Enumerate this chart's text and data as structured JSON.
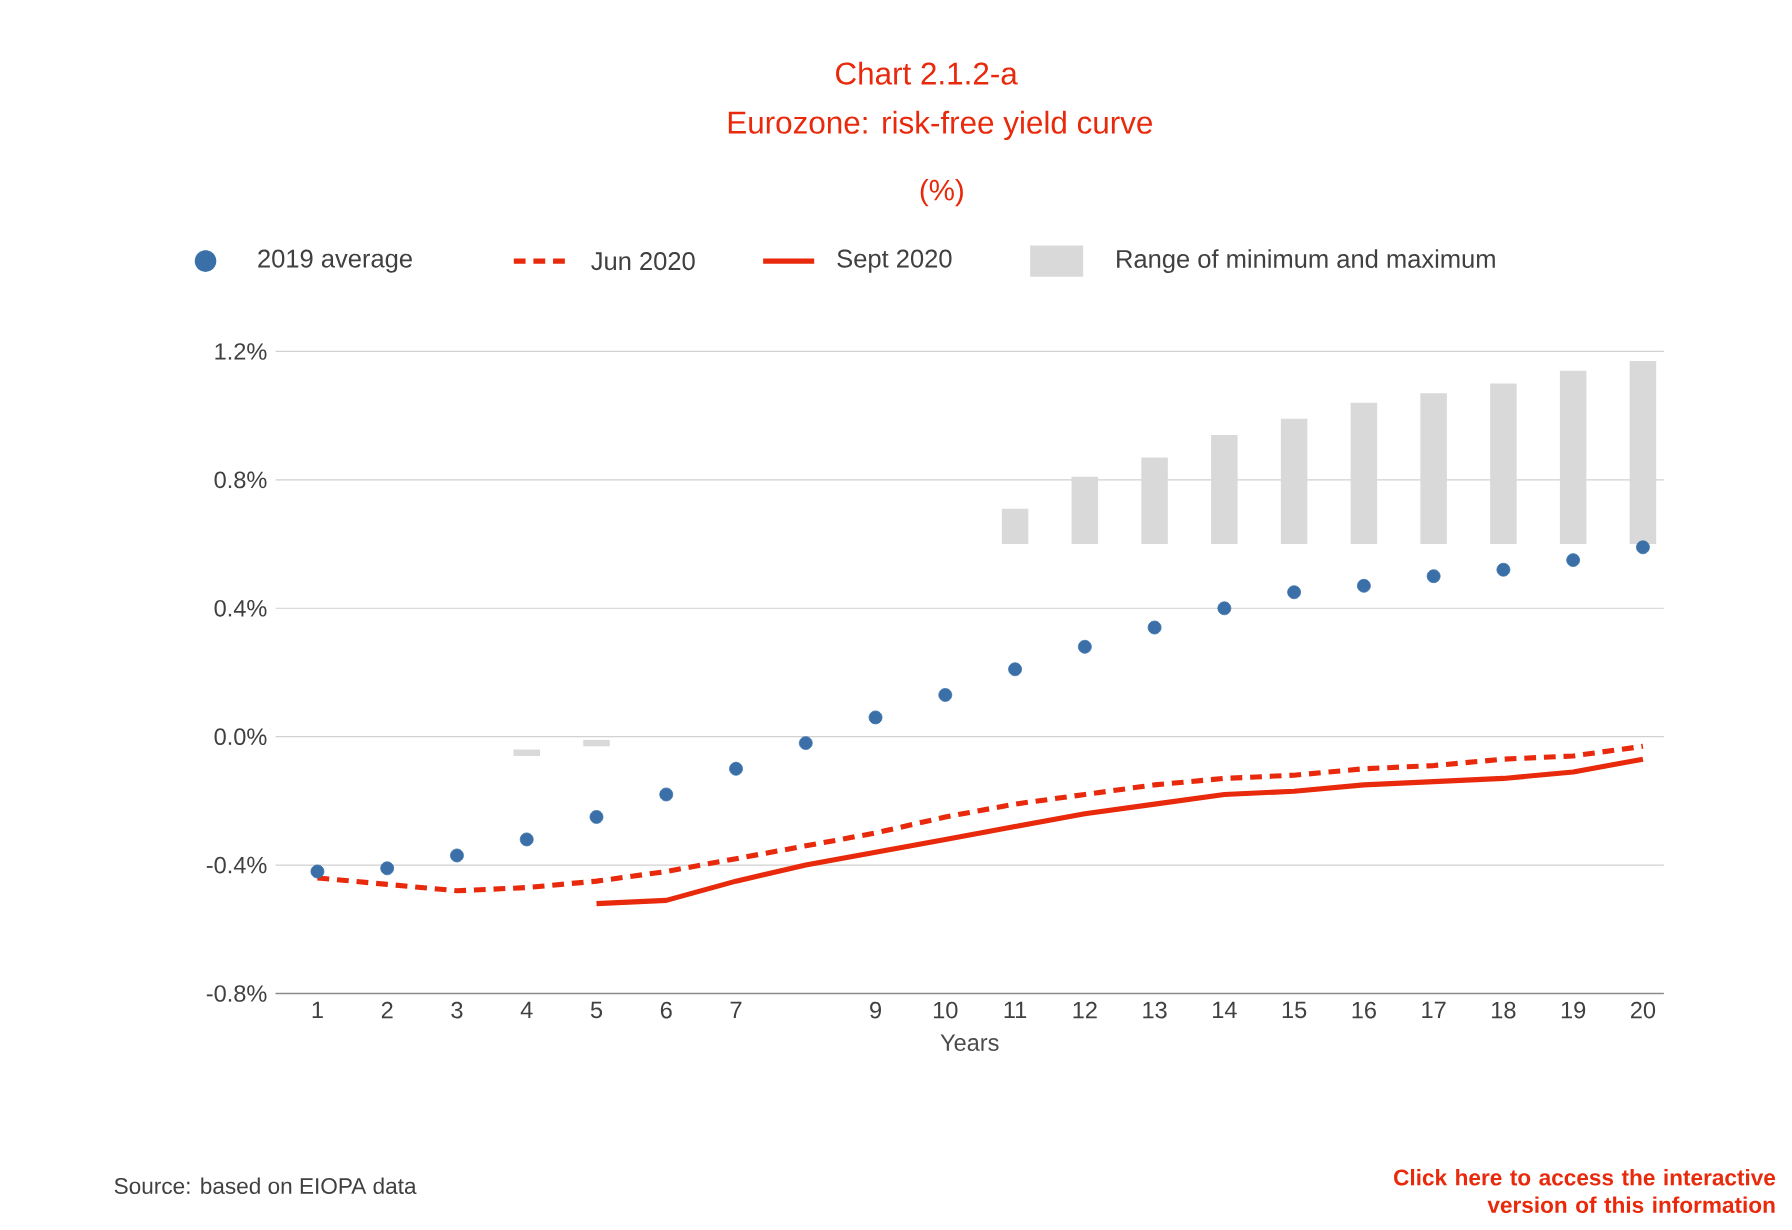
{
  "chart_data": {
    "type": "line",
    "title": "Chart 2.1.2-a",
    "subtitle": "Eurozone: risk-free yield curve",
    "xlabel": "Years",
    "categories": [
      "1",
      "2",
      "3",
      "4",
      "5",
      "6",
      "7",
      null,
      "9",
      "10",
      "11",
      "12",
      "13",
      "14",
      "15",
      "16",
      "17",
      "18",
      "19",
      "20"
    ],
    "series": [
      {
        "name": "2019 average",
        "type": "scatter",
        "marker": "circle",
        "color": "#3a6fa8",
        "values": [
          -0.42,
          -0.41,
          -0.37,
          -0.32,
          -0.25,
          -0.18,
          -0.1,
          -0.02,
          0.06,
          0.13,
          0.21,
          0.28,
          0.34,
          0.4,
          0.45,
          0.47,
          0.5,
          0.52,
          0.55,
          0.59
        ]
      },
      {
        "name": "Jun 2020",
        "line_style": "dashed",
        "color": "#e8290b",
        "values": [
          -0.44,
          -0.46,
          -0.48,
          -0.47,
          -0.45,
          -0.42,
          -0.38,
          -0.34,
          -0.3,
          -0.25,
          -0.21,
          -0.18,
          -0.15,
          -0.13,
          -0.12,
          -0.1,
          -0.09,
          -0.07,
          -0.06,
          -0.03
        ]
      },
      {
        "name": "Sept 2020",
        "line_style": "solid",
        "color": "#e8290b",
        "values": [
          null,
          null,
          null,
          null,
          -0.52,
          -0.51,
          -0.45,
          -0.4,
          -0.36,
          -0.32,
          -0.28,
          -0.24,
          -0.21,
          -0.18,
          -0.17,
          -0.15,
          -0.14,
          -0.13,
          -0.11,
          -0.07
        ]
      },
      {
        "name": "Range of minimum and maximum",
        "type": "bar",
        "color": "#d9d9d9",
        "base": [
          null,
          null,
          null,
          -0.06,
          -0.03,
          null,
          null,
          null,
          null,
          null,
          0.6,
          0.6,
          0.6,
          0.6,
          0.6,
          0.6,
          0.6,
          0.6,
          0.6,
          0.6
        ],
        "values": [
          null,
          null,
          null,
          0.02,
          0.02,
          null,
          null,
          null,
          null,
          null,
          0.11,
          0.21,
          0.27,
          0.34,
          0.39,
          0.44,
          0.47,
          0.5,
          0.54,
          0.57
        ]
      }
    ],
    "ylim": [
      -0.8,
      1.2
    ],
    "yticks": [
      {
        "value": -0.8,
        "label": "-0.8%"
      },
      {
        "value": -0.4,
        "label": "-0.4%"
      },
      {
        "value": 0.0,
        "label": "0.0%"
      },
      {
        "value": 0.4,
        "label": "0.4%"
      },
      {
        "value": 0.8,
        "label": "0.8%"
      },
      {
        "value": 1.2,
        "label": "1.2%"
      }
    ],
    "grid": "y",
    "legend": "top",
    "annotations": [
      "(%)",
      "Source: based on EIOPA data",
      "Click here to access the interactive version of this information"
    ]
  }
}
